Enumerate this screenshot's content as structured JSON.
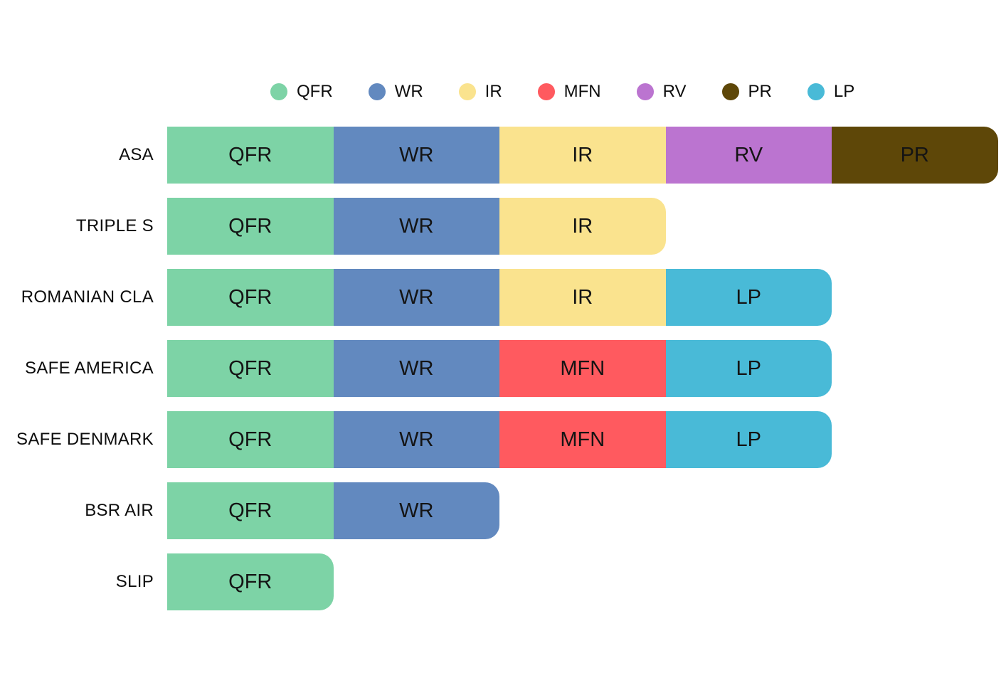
{
  "chart_data": {
    "type": "bar",
    "orientation": "horizontal",
    "stacked": true,
    "title": "",
    "xlabel": "",
    "ylabel": "",
    "grid": false,
    "legend_position": "top",
    "legend": [
      "QFR",
      "WR",
      "IR",
      "MFN",
      "RV",
      "PR",
      "LP"
    ],
    "colors": {
      "QFR": "#7DD3A6",
      "WR": "#6289BF",
      "IR": "#FAE38E",
      "MFN": "#FF5A5F",
      "RV": "#BB74D0",
      "PR": "#5E4708",
      "LP": "#49BAD7"
    },
    "segment_unit_value": 1,
    "categories": [
      "ASA",
      "TRIPLE S",
      "ROMANIAN CLA",
      "SAFE AMERICA",
      "SAFE DENMARK",
      "BSR AIR",
      "SLIP"
    ],
    "rows": [
      {
        "category": "ASA",
        "segments": [
          {
            "label": "QFR",
            "value": 1
          },
          {
            "label": "WR",
            "value": 1
          },
          {
            "label": "IR",
            "value": 1
          },
          {
            "label": "RV",
            "value": 1
          },
          {
            "label": "PR",
            "value": 1
          }
        ],
        "total": 5
      },
      {
        "category": "TRIPLE S",
        "segments": [
          {
            "label": "QFR",
            "value": 1
          },
          {
            "label": "WR",
            "value": 1
          },
          {
            "label": "IR",
            "value": 1
          }
        ],
        "total": 3
      },
      {
        "category": "ROMANIAN CLA",
        "segments": [
          {
            "label": "QFR",
            "value": 1
          },
          {
            "label": "WR",
            "value": 1
          },
          {
            "label": "IR",
            "value": 1
          },
          {
            "label": "LP",
            "value": 1
          }
        ],
        "total": 4
      },
      {
        "category": "SAFE AMERICA",
        "segments": [
          {
            "label": "QFR",
            "value": 1
          },
          {
            "label": "WR",
            "value": 1
          },
          {
            "label": "MFN",
            "value": 1
          },
          {
            "label": "LP",
            "value": 1
          }
        ],
        "total": 4
      },
      {
        "category": "SAFE DENMARK",
        "segments": [
          {
            "label": "QFR",
            "value": 1
          },
          {
            "label": "WR",
            "value": 1
          },
          {
            "label": "MFN",
            "value": 1
          },
          {
            "label": "LP",
            "value": 1
          }
        ],
        "total": 4
      },
      {
        "category": "BSR AIR",
        "segments": [
          {
            "label": "QFR",
            "value": 1
          },
          {
            "label": "WR",
            "value": 1
          }
        ],
        "total": 2
      },
      {
        "category": "SLIP",
        "segments": [
          {
            "label": "QFR",
            "value": 1
          }
        ],
        "total": 1
      }
    ]
  }
}
